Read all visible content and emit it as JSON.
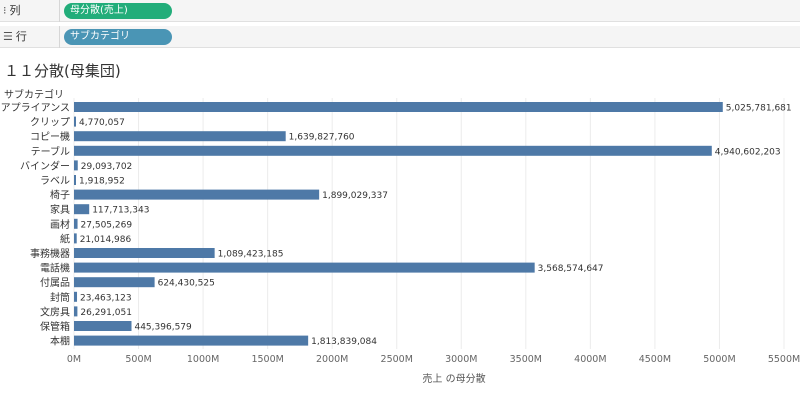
{
  "shelves": {
    "columns": {
      "label": "列",
      "pill": "母分散(売上)"
    },
    "rows": {
      "label": "行",
      "pill": "サブカテゴリ"
    }
  },
  "title": "１１分散(母集団)",
  "chart_data": {
    "type": "bar",
    "orientation": "horizontal",
    "title": "",
    "ylabel": "サブカテゴリ",
    "xlabel": "売上 の母分散",
    "categories": [
      "アプライアンス",
      "クリップ",
      "コピー機",
      "テーブル",
      "バインダー",
      "ラベル",
      "椅子",
      "家具",
      "画材",
      "紙",
      "事務機器",
      "電話機",
      "付属品",
      "封筒",
      "文房具",
      "保管箱",
      "本棚"
    ],
    "values": [
      5025781681,
      4770057,
      1639827760,
      4940602203,
      29093702,
      1918952,
      1899029337,
      117713343,
      27505269,
      21014986,
      1089423185,
      3568574647,
      624430525,
      23463123,
      26291051,
      445396579,
      1813839084
    ],
    "value_labels": [
      "5,025,781,681",
      "4,770,057",
      "1,639,827,760",
      "4,940,602,203",
      "29,093,702",
      "1,918,952",
      "1,899,029,337",
      "117,713,343",
      "27,505,269",
      "21,014,986",
      "1,089,423,185",
      "3,568,574,647",
      "624,430,525",
      "23,463,123",
      "26,291,051",
      "445,396,579",
      "1,813,839,084"
    ],
    "xlim": [
      0,
      5500000000
    ],
    "xticks": [
      0,
      500000000,
      1000000000,
      1500000000,
      2000000000,
      2500000000,
      3000000000,
      3500000000,
      4000000000,
      4500000000,
      5000000000,
      5500000000
    ],
    "xtick_labels": [
      "0M",
      "500M",
      "1000M",
      "1500M",
      "2000M",
      "2500M",
      "3000M",
      "3500M",
      "4000M",
      "4500M",
      "5000M",
      "5500M"
    ],
    "bar_color": "#4e79a7",
    "grid": true
  }
}
